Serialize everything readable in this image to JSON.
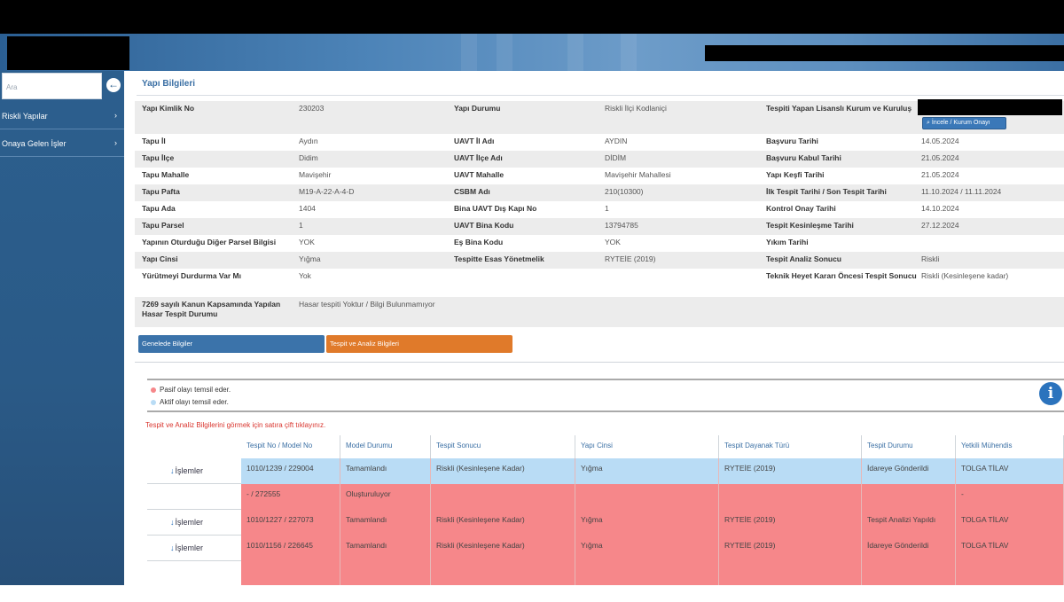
{
  "sidebar": {
    "search_placeholder": "Ara",
    "items": [
      {
        "label": "Riskli Yapılar"
      },
      {
        "label": "Onaya Gelen İşler"
      }
    ]
  },
  "page": {
    "title": "Yapı Bilgileri"
  },
  "details": {
    "button_view": "İncele / Kurum Onayı",
    "rows": [
      [
        {
          "l": "Yapı Kimlik No",
          "v": "230203"
        },
        {
          "l": "Yapı Durumu",
          "v": "Riskli İlçi Kodlaniçi"
        },
        {
          "l": "Tespiti Yapan Lisanslı Kurum ve Kuruluş",
          "v": ""
        }
      ],
      [
        {
          "l": "Tapu İl",
          "v": "Aydın"
        },
        {
          "l": "UAVT İl Adı",
          "v": "AYDIN"
        },
        {
          "l": "Başvuru Tarihi",
          "v": "14.05.2024"
        }
      ],
      [
        {
          "l": "Tapu İlçe",
          "v": "Didim"
        },
        {
          "l": "UAVT İlçe Adı",
          "v": "DİDİM"
        },
        {
          "l": "Başvuru Kabul Tarihi",
          "v": "21.05.2024"
        }
      ],
      [
        {
          "l": "Tapu Mahalle",
          "v": "Mavişehir"
        },
        {
          "l": "UAVT Mahalle",
          "v": "Mavişehir Mahallesi"
        },
        {
          "l": "Yapı Keşfi Tarihi",
          "v": "21.05.2024"
        }
      ],
      [
        {
          "l": "Tapu Pafta",
          "v": "M19-A-22-A-4-D"
        },
        {
          "l": "CSBM Adı",
          "v": "210(10300)"
        },
        {
          "l": "İlk Tespit Tarihi / Son Tespit Tarihi",
          "v": "11.10.2024 / 11.11.2024"
        }
      ],
      [
        {
          "l": "Tapu Ada",
          "v": "1404"
        },
        {
          "l": "Bina UAVT Dış Kapı No",
          "v": "1"
        },
        {
          "l": "Kontrol Onay Tarihi",
          "v": "14.10.2024"
        }
      ],
      [
        {
          "l": "Tapu Parsel",
          "v": "1"
        },
        {
          "l": "UAVT Bina Kodu",
          "v": "13794785"
        },
        {
          "l": "Tespit Kesinleşme Tarihi",
          "v": "27.12.2024"
        }
      ],
      [
        {
          "l": "Yapının Oturduğu Diğer Parsel Bilgisi",
          "v": "YOK"
        },
        {
          "l": "Eş Bina Kodu",
          "v": "YOK"
        },
        {
          "l": "Yıkım Tarihi",
          "v": ""
        }
      ],
      [
        {
          "l": "Yapı Cinsi",
          "v": "Yığma"
        },
        {
          "l": "Tespitte Esas Yönetmelik",
          "v": "RYTEİE (2019)"
        },
        {
          "l": "Tespit Analiz Sonucu",
          "v": "Riskli"
        }
      ],
      [
        {
          "l": "Yürütmeyi Durdurma Var Mı",
          "v": "Yok"
        },
        {
          "l": "",
          "v": ""
        },
        {
          "l": "Teknik Heyet Kararı Öncesi Tespit Sonucu",
          "v": "Riskli (Kesinleşene kadar)"
        }
      ],
      [
        {
          "l": "7269 sayılı Kanun Kapsamında Yapılan Hasar Tespit Durumu",
          "v": "Hasar tespiti Yoktur / Bilgi Bulunmamıyor"
        },
        {
          "l": "",
          "v": ""
        },
        {
          "l": "",
          "v": ""
        }
      ]
    ]
  },
  "tabs": {
    "blue": "Genelede Bilgiler",
    "orange": "Tespit ve Analiz Bilgileri"
  },
  "legend": {
    "passive": "Pasif olayı temsil eder.",
    "active": "Aktif olayı temsil eder."
  },
  "note": "Tespit ve Analiz Bilgilerini görmek için satıra çift tıklayınız.",
  "table": {
    "headers": [
      "Tespit No / Model No",
      "Model Durumu",
      "Tespit Sonucu",
      "Yapı Cinsi",
      "Tespit Dayanak Türü",
      "Tespit Durumu",
      "Yetkili Mühendis"
    ],
    "action_label": "İşlemler",
    "rows": [
      {
        "cells": [
          "1010/1239 / 229004",
          "Tamamlandı",
          "Riskli (Kesinleşene Kadar)",
          "Yığma",
          "RYTEİE (2019)",
          "İdareye Gönderildi",
          "TOLGA TİLAV"
        ],
        "state": "active"
      },
      {
        "cells": [
          "- / 272555",
          "Oluşturuluyor",
          "",
          "",
          "",
          "",
          "-"
        ],
        "state": "passive",
        "no_action": true
      },
      {
        "cells": [
          "1010/1227 / 227073",
          "Tamamlandı",
          "Riskli (Kesinleşene Kadar)",
          "Yığma",
          "RYTEİE (2019)",
          "Tespit Analizi Yapıldı",
          "TOLGA TİLAV"
        ],
        "state": "passive"
      },
      {
        "cells": [
          "1010/1156 / 226645",
          "Tamamlandı",
          "Riskli (Kesinleşene Kadar)",
          "Yığma",
          "RYTEİE (2019)",
          "İdareye Gönderildi",
          "TOLGA TİLAV"
        ],
        "state": "passive"
      }
    ]
  },
  "colors": {
    "active_row": "#b9dcf5",
    "passive_row": "#f6878a",
    "accent": "#2c5f8e",
    "orange": "#e07a2a"
  }
}
